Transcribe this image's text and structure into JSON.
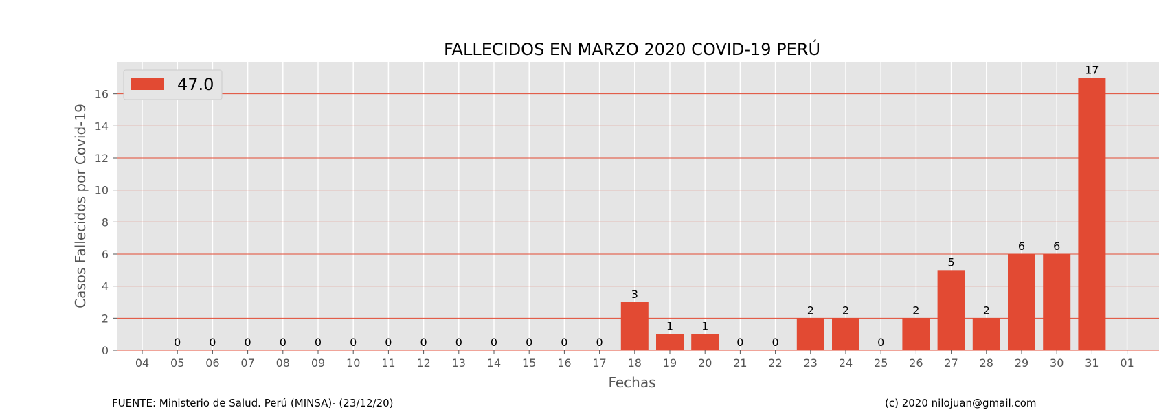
{
  "chart_data": {
    "type": "bar",
    "title": "FALLECIDOS EN MARZO 2020 COVID-19 PERÚ",
    "xlabel": "Fechas",
    "ylabel": "Casos Fallecidos por Covid-19",
    "xticks": [
      "04",
      "05",
      "06",
      "07",
      "08",
      "09",
      "10",
      "11",
      "12",
      "13",
      "14",
      "15",
      "16",
      "17",
      "18",
      "19",
      "20",
      "21",
      "22",
      "23",
      "24",
      "25",
      "26",
      "27",
      "28",
      "29",
      "30",
      "31",
      "01"
    ],
    "categories": [
      "05",
      "06",
      "07",
      "08",
      "09",
      "10",
      "11",
      "12",
      "13",
      "14",
      "15",
      "16",
      "17",
      "18",
      "19",
      "20",
      "21",
      "22",
      "23",
      "24",
      "25",
      "26",
      "27",
      "28",
      "29",
      "30",
      "31"
    ],
    "series": [
      {
        "name": "47.0",
        "values": [
          0,
          0,
          0,
          0,
          0,
          0,
          0,
          0,
          0,
          0,
          0,
          0,
          0,
          3,
          1,
          1,
          0,
          0,
          2,
          2,
          0,
          2,
          5,
          2,
          6,
          6,
          17
        ]
      }
    ],
    "ylim": [
      0,
      18
    ],
    "yticks": [
      0,
      2,
      4,
      6,
      8,
      10,
      12,
      14,
      16
    ],
    "grid": true,
    "legend_position": "top-left",
    "colors": {
      "bar": "#E24A33",
      "plot_background": "#E5E5E5",
      "hgrid": "#E24A33",
      "vgrid": "#FFFFFF"
    }
  },
  "footer": {
    "source": "FUENTE: Ministerio de Salud. Perú (MINSA)- (23/12/20)",
    "credit": "(c) 2020 nilojuan@gmail.com"
  }
}
